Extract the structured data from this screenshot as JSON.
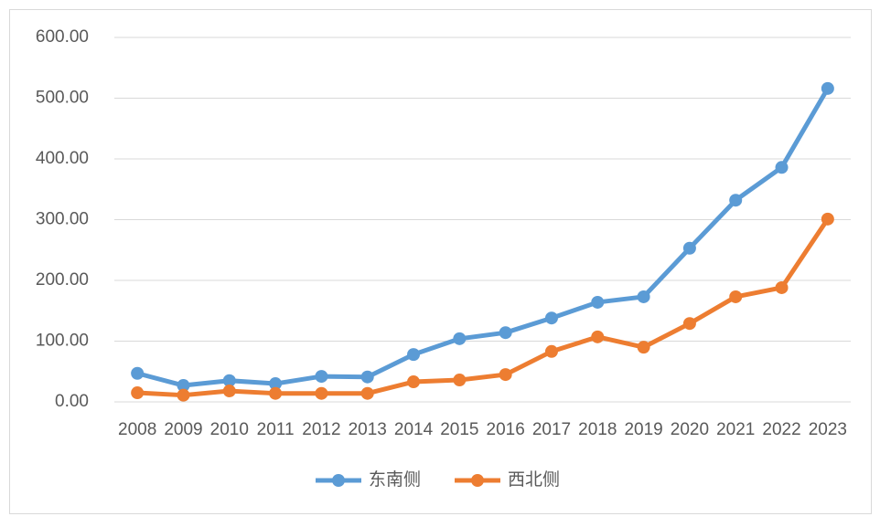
{
  "chart_data": {
    "type": "line",
    "categories": [
      "2008",
      "2009",
      "2010",
      "2011",
      "2012",
      "2013",
      "2014",
      "2015",
      "2016",
      "2017",
      "2018",
      "2019",
      "2020",
      "2021",
      "2022",
      "2023"
    ],
    "series": [
      {
        "name": "东南侧",
        "color": "#5b9bd5",
        "values": [
          47,
          27,
          35,
          30,
          42,
          41,
          78,
          104,
          114,
          138,
          164,
          173,
          253,
          332,
          386,
          516
        ]
      },
      {
        "name": "西北侧",
        "color": "#ed7d31",
        "values": [
          15,
          11,
          18,
          14,
          14,
          14,
          33,
          36,
          45,
          83,
          107,
          90,
          129,
          173,
          188,
          301
        ]
      }
    ],
    "ylim": [
      0,
      600
    ],
    "yticks": [
      {
        "value": 0,
        "label": "0.00"
      },
      {
        "value": 100,
        "label": "100.00"
      },
      {
        "value": 200,
        "label": "200.00"
      },
      {
        "value": 300,
        "label": "300.00"
      },
      {
        "value": 400,
        "label": "400.00"
      },
      {
        "value": 500,
        "label": "500.00"
      },
      {
        "value": 600,
        "label": "600.00"
      }
    ],
    "grid": true,
    "legend": "bottom"
  }
}
